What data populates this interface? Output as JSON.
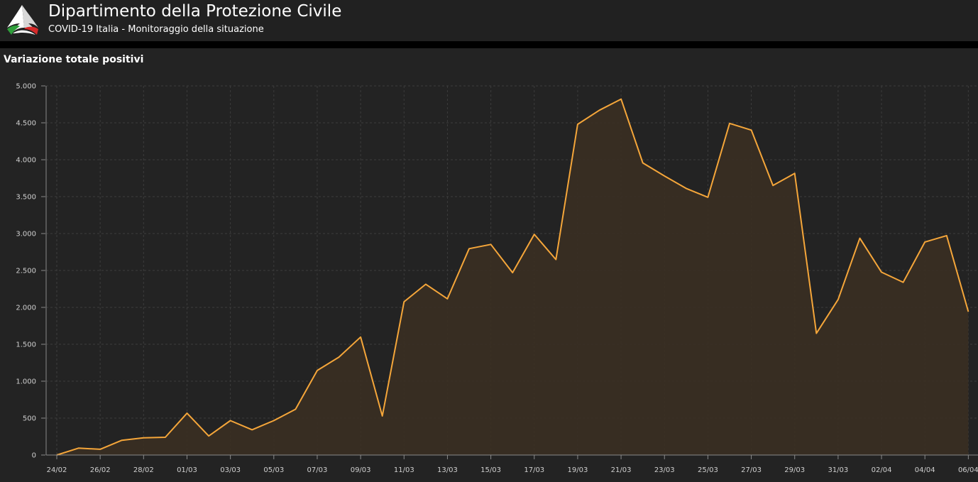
{
  "header": {
    "title": "Dipartimento della Protezione Civile",
    "subtitle": "COVID-19 Italia - Monitoraggio della situazione",
    "logo_icon": "civil-protection-logo-icon"
  },
  "panel": {
    "title": "Variazione totale positivi"
  },
  "colors": {
    "background": "#232323",
    "line": "#f5a63a",
    "area_fill": "#3a2f22",
    "grid": "#3c3c3c"
  },
  "chart_data": {
    "type": "area",
    "title": "Variazione totale positivi",
    "xlabel": "",
    "ylabel": "",
    "ylim": [
      0,
      5000
    ],
    "y_ticks": [
      0,
      500,
      1000,
      1500,
      2000,
      2500,
      3000,
      3500,
      4000,
      4500,
      5000
    ],
    "y_tick_labels": [
      "0",
      "500",
      "1.000",
      "1.500",
      "2.000",
      "2.500",
      "3.000",
      "3.500",
      "4.000",
      "4.500",
      "5.000"
    ],
    "x_tick_labels": [
      "24/02",
      "26/02",
      "28/02",
      "01/03",
      "03/03",
      "05/03",
      "07/03",
      "09/03",
      "11/03",
      "13/03",
      "15/03",
      "17/03",
      "19/03",
      "21/03",
      "23/03",
      "25/03",
      "27/03",
      "29/03",
      "31/03",
      "02/04",
      "04/04",
      "06/04"
    ],
    "grid": true,
    "x": [
      "24/02",
      "25/02",
      "26/02",
      "27/02",
      "28/02",
      "29/02",
      "01/03",
      "02/03",
      "03/03",
      "04/03",
      "05/03",
      "06/03",
      "07/03",
      "08/03",
      "09/03",
      "10/03",
      "11/03",
      "12/03",
      "13/03",
      "14/03",
      "15/03",
      "16/03",
      "17/03",
      "18/03",
      "19/03",
      "20/03",
      "21/03",
      "22/03",
      "23/03",
      "24/03",
      "25/03",
      "26/03",
      "27/03",
      "28/03",
      "29/03",
      "30/03",
      "31/03",
      "01/04",
      "02/04",
      "03/04",
      "04/04",
      "05/04",
      "06/04"
    ],
    "values": [
      0,
      93,
      78,
      200,
      234,
      240,
      566,
      258,
      466,
      342,
      466,
      620,
      1145,
      1326,
      1598,
      529,
      2076,
      2313,
      2116,
      2795,
      2853,
      2470,
      2989,
      2648,
      4480,
      4670,
      4821,
      3957,
      3780,
      3612,
      3491,
      4492,
      4401,
      3651,
      3815,
      1648,
      2107,
      2937,
      2477,
      2339,
      2886,
      2972,
      1941
    ]
  }
}
